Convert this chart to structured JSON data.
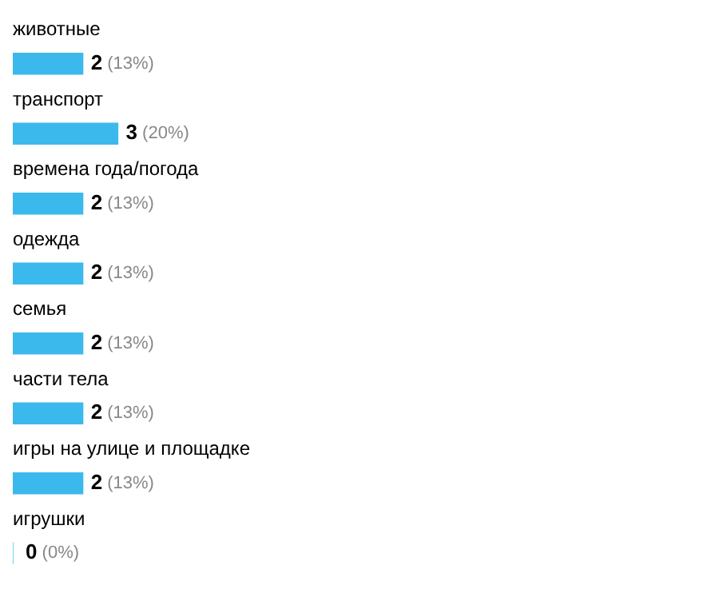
{
  "chart_data": {
    "type": "bar",
    "orientation": "horizontal",
    "categories": [
      "животные",
      "транспорт",
      "времена года/погода",
      "одежда",
      "семья",
      "части тела",
      "игры на улице и площадке",
      "игрушки"
    ],
    "values": [
      2,
      3,
      2,
      2,
      2,
      2,
      2,
      0
    ],
    "value_labels": [
      "2 (13%)",
      "3 (20%)",
      "2 (13%)",
      "2 (13%)",
      "2 (13%)",
      "2 (13%)",
      "2 (13%)",
      "0 (0%)"
    ],
    "color": "#3cb9ec",
    "legend": false
  }
}
